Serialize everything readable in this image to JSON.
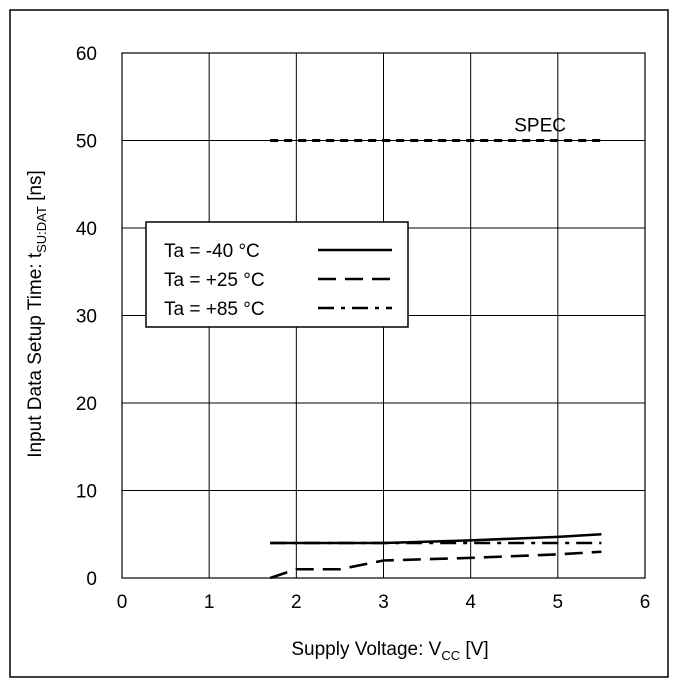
{
  "chart_data": {
    "type": "line",
    "title": "",
    "xlabel": {
      "main": "Supply Voltage: V",
      "sub": "CC",
      "unit": " [V]"
    },
    "ylabel": {
      "main": "Input Data Setup Time: t",
      "sub": "SU:DAT",
      "unit": " [ns]"
    },
    "xlim": [
      0,
      6
    ],
    "ylim": [
      0,
      60
    ],
    "xticks": [
      "0",
      "1",
      "2",
      "3",
      "4",
      "5",
      "6"
    ],
    "yticks": [
      "0",
      "10",
      "20",
      "30",
      "40",
      "50",
      "60"
    ],
    "grid": true,
    "legend_position": "center-left",
    "series": [
      {
        "name": "Ta = -40 °C",
        "style": "solid",
        "x": [
          1.7,
          2.0,
          3.0,
          4.0,
          5.0,
          5.5
        ],
        "y": [
          4.0,
          4.0,
          4.0,
          4.3,
          4.7,
          5.0
        ]
      },
      {
        "name": "Ta = +25 °C",
        "style": "dash",
        "x": [
          1.7,
          2.0,
          2.5,
          3.0,
          4.0,
          5.0,
          5.5
        ],
        "y": [
          0.0,
          1.0,
          1.0,
          2.0,
          2.3,
          2.7,
          3.0
        ]
      },
      {
        "name": "Ta = +85 °C",
        "style": "dashdot",
        "x": [
          1.7,
          2.0,
          3.0,
          4.0,
          5.0,
          5.5
        ],
        "y": [
          4.0,
          4.0,
          4.0,
          4.0,
          4.0,
          4.0
        ]
      }
    ],
    "spec": {
      "label": "SPEC",
      "value": 50,
      "x_start": 1.7,
      "x_end": 5.5
    }
  }
}
